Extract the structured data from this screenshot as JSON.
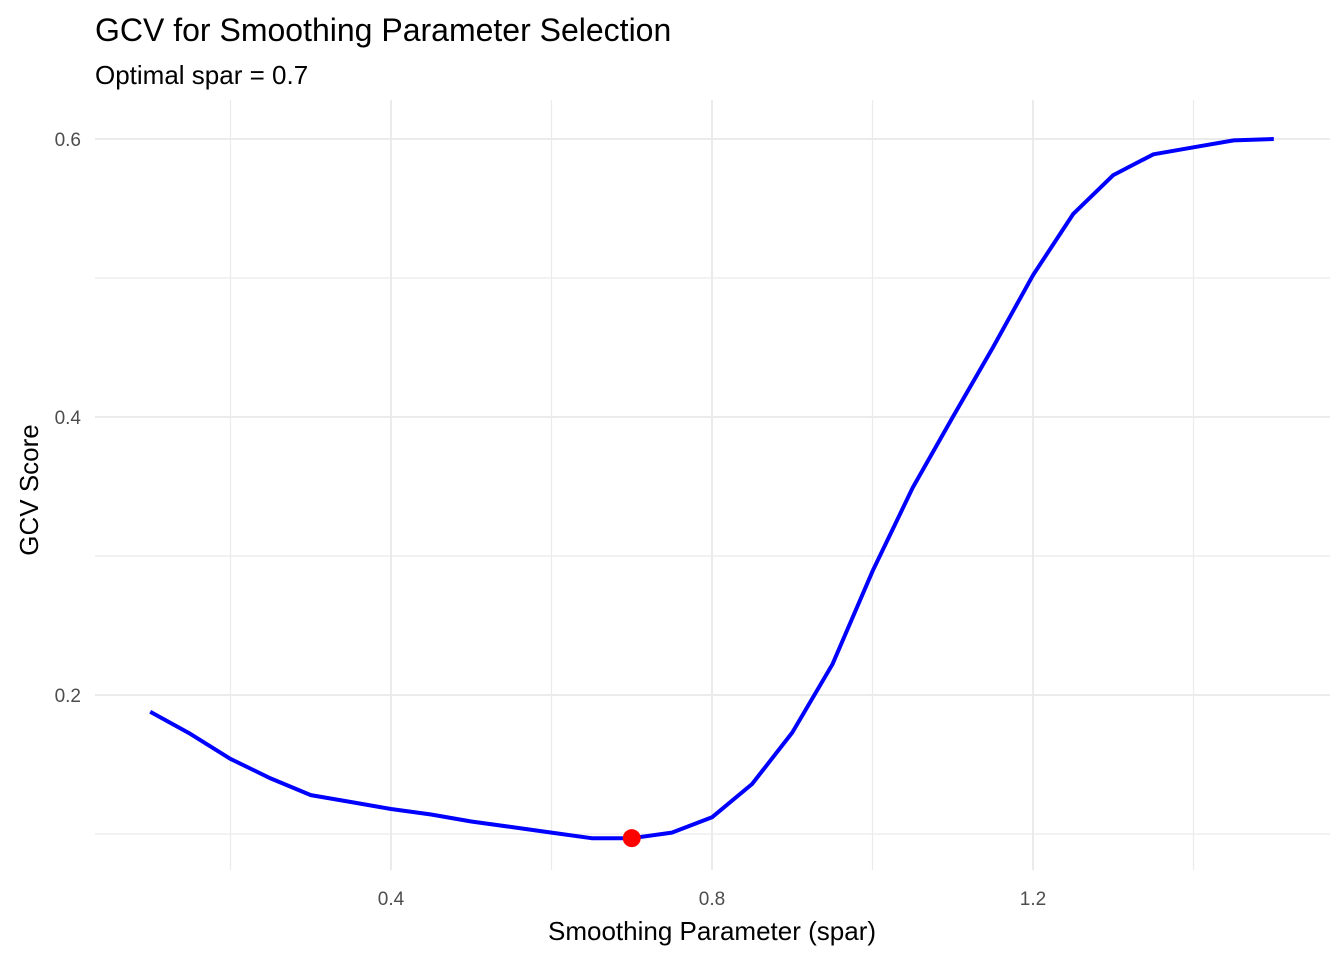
{
  "title": "GCV for Smoothing Parameter Selection",
  "subtitle": "Optimal spar = 0.7",
  "chart_data": {
    "type": "line",
    "title": "GCV for Smoothing Parameter Selection",
    "subtitle": "Optimal spar = 0.7",
    "xlabel": "Smoothing Parameter (spar)",
    "ylabel": "GCV Score",
    "x_ticks": [
      0.4,
      0.8,
      1.2
    ],
    "x_tick_labels": [
      "0.4",
      "0.8",
      "1.2"
    ],
    "y_ticks": [
      0.2,
      0.4,
      0.6
    ],
    "y_tick_labels": [
      "0.2",
      "0.4",
      "0.6"
    ],
    "xlim": [
      0.03,
      1.57
    ],
    "ylim": [
      0.075,
      0.625
    ],
    "grid": true,
    "legend": "none",
    "series": [
      {
        "name": "GCV",
        "color": "#0000FF",
        "x": [
          0.1,
          0.15,
          0.2,
          0.25,
          0.3,
          0.35,
          0.4,
          0.45,
          0.5,
          0.55,
          0.6,
          0.65,
          0.7,
          0.75,
          0.8,
          0.85,
          0.9,
          0.95,
          1.0,
          1.05,
          1.1,
          1.15,
          1.2,
          1.25,
          1.3,
          1.35,
          1.4,
          1.45,
          1.5
        ],
        "values": [
          0.188,
          0.172,
          0.154,
          0.14,
          0.128,
          0.123,
          0.118,
          0.114,
          0.109,
          0.105,
          0.101,
          0.097,
          0.097,
          0.101,
          0.112,
          0.136,
          0.173,
          0.222,
          0.289,
          0.349,
          0.4,
          0.45,
          0.502,
          0.546,
          0.574,
          0.589,
          0.594,
          0.599,
          0.6
        ]
      }
    ],
    "highlight_point": {
      "x": 0.7,
      "y": 0.097,
      "color": "#FF0000",
      "label": "Optimal spar"
    }
  }
}
